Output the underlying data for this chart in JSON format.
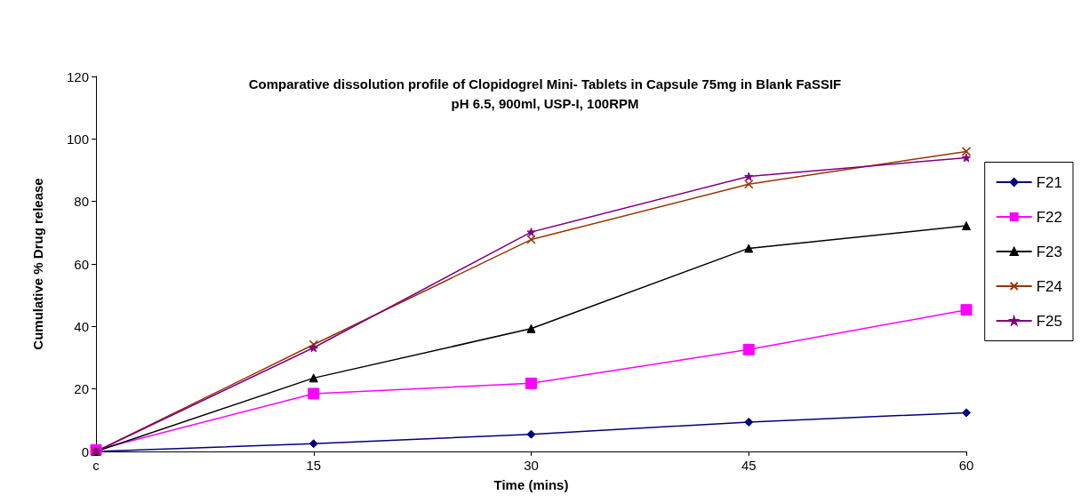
{
  "chart_data": {
    "type": "line",
    "title": "Comparative dissolution profile of Clopidogrel Mini- Tablets in Capsule 75mg in Blank FaSSIF\npH 6.5, 900ml, USP-I, 100RPM",
    "xlabel": "Time (mins)",
    "ylabel": "Cumulative % Drug release",
    "categories": [
      "c",
      "15",
      "30",
      "45",
      "60"
    ],
    "ylim": [
      0,
      120
    ],
    "yticks": [
      0,
      20,
      40,
      60,
      80,
      100,
      120
    ],
    "grid": false,
    "legend": "right",
    "series": [
      {
        "name": "F21",
        "color": "#000080",
        "marker": "diamond",
        "values": [
          0,
          2.5,
          5.5,
          9.4,
          12.4
        ]
      },
      {
        "name": "F22",
        "color": "#ff00ff",
        "marker": "square",
        "values": [
          0.5,
          18.5,
          21.8,
          32.6,
          45.3
        ]
      },
      {
        "name": "F23",
        "color": "#000000",
        "marker": "triangle",
        "values": [
          0,
          23.5,
          39.3,
          65,
          72.2
        ]
      },
      {
        "name": "F24",
        "color": "#993300",
        "marker": "cross",
        "values": [
          0,
          34.2,
          67.8,
          85.5,
          96
        ]
      },
      {
        "name": "F25",
        "color": "#800080",
        "marker": "star",
        "values": [
          0,
          33.2,
          70.2,
          88,
          94
        ]
      }
    ]
  }
}
